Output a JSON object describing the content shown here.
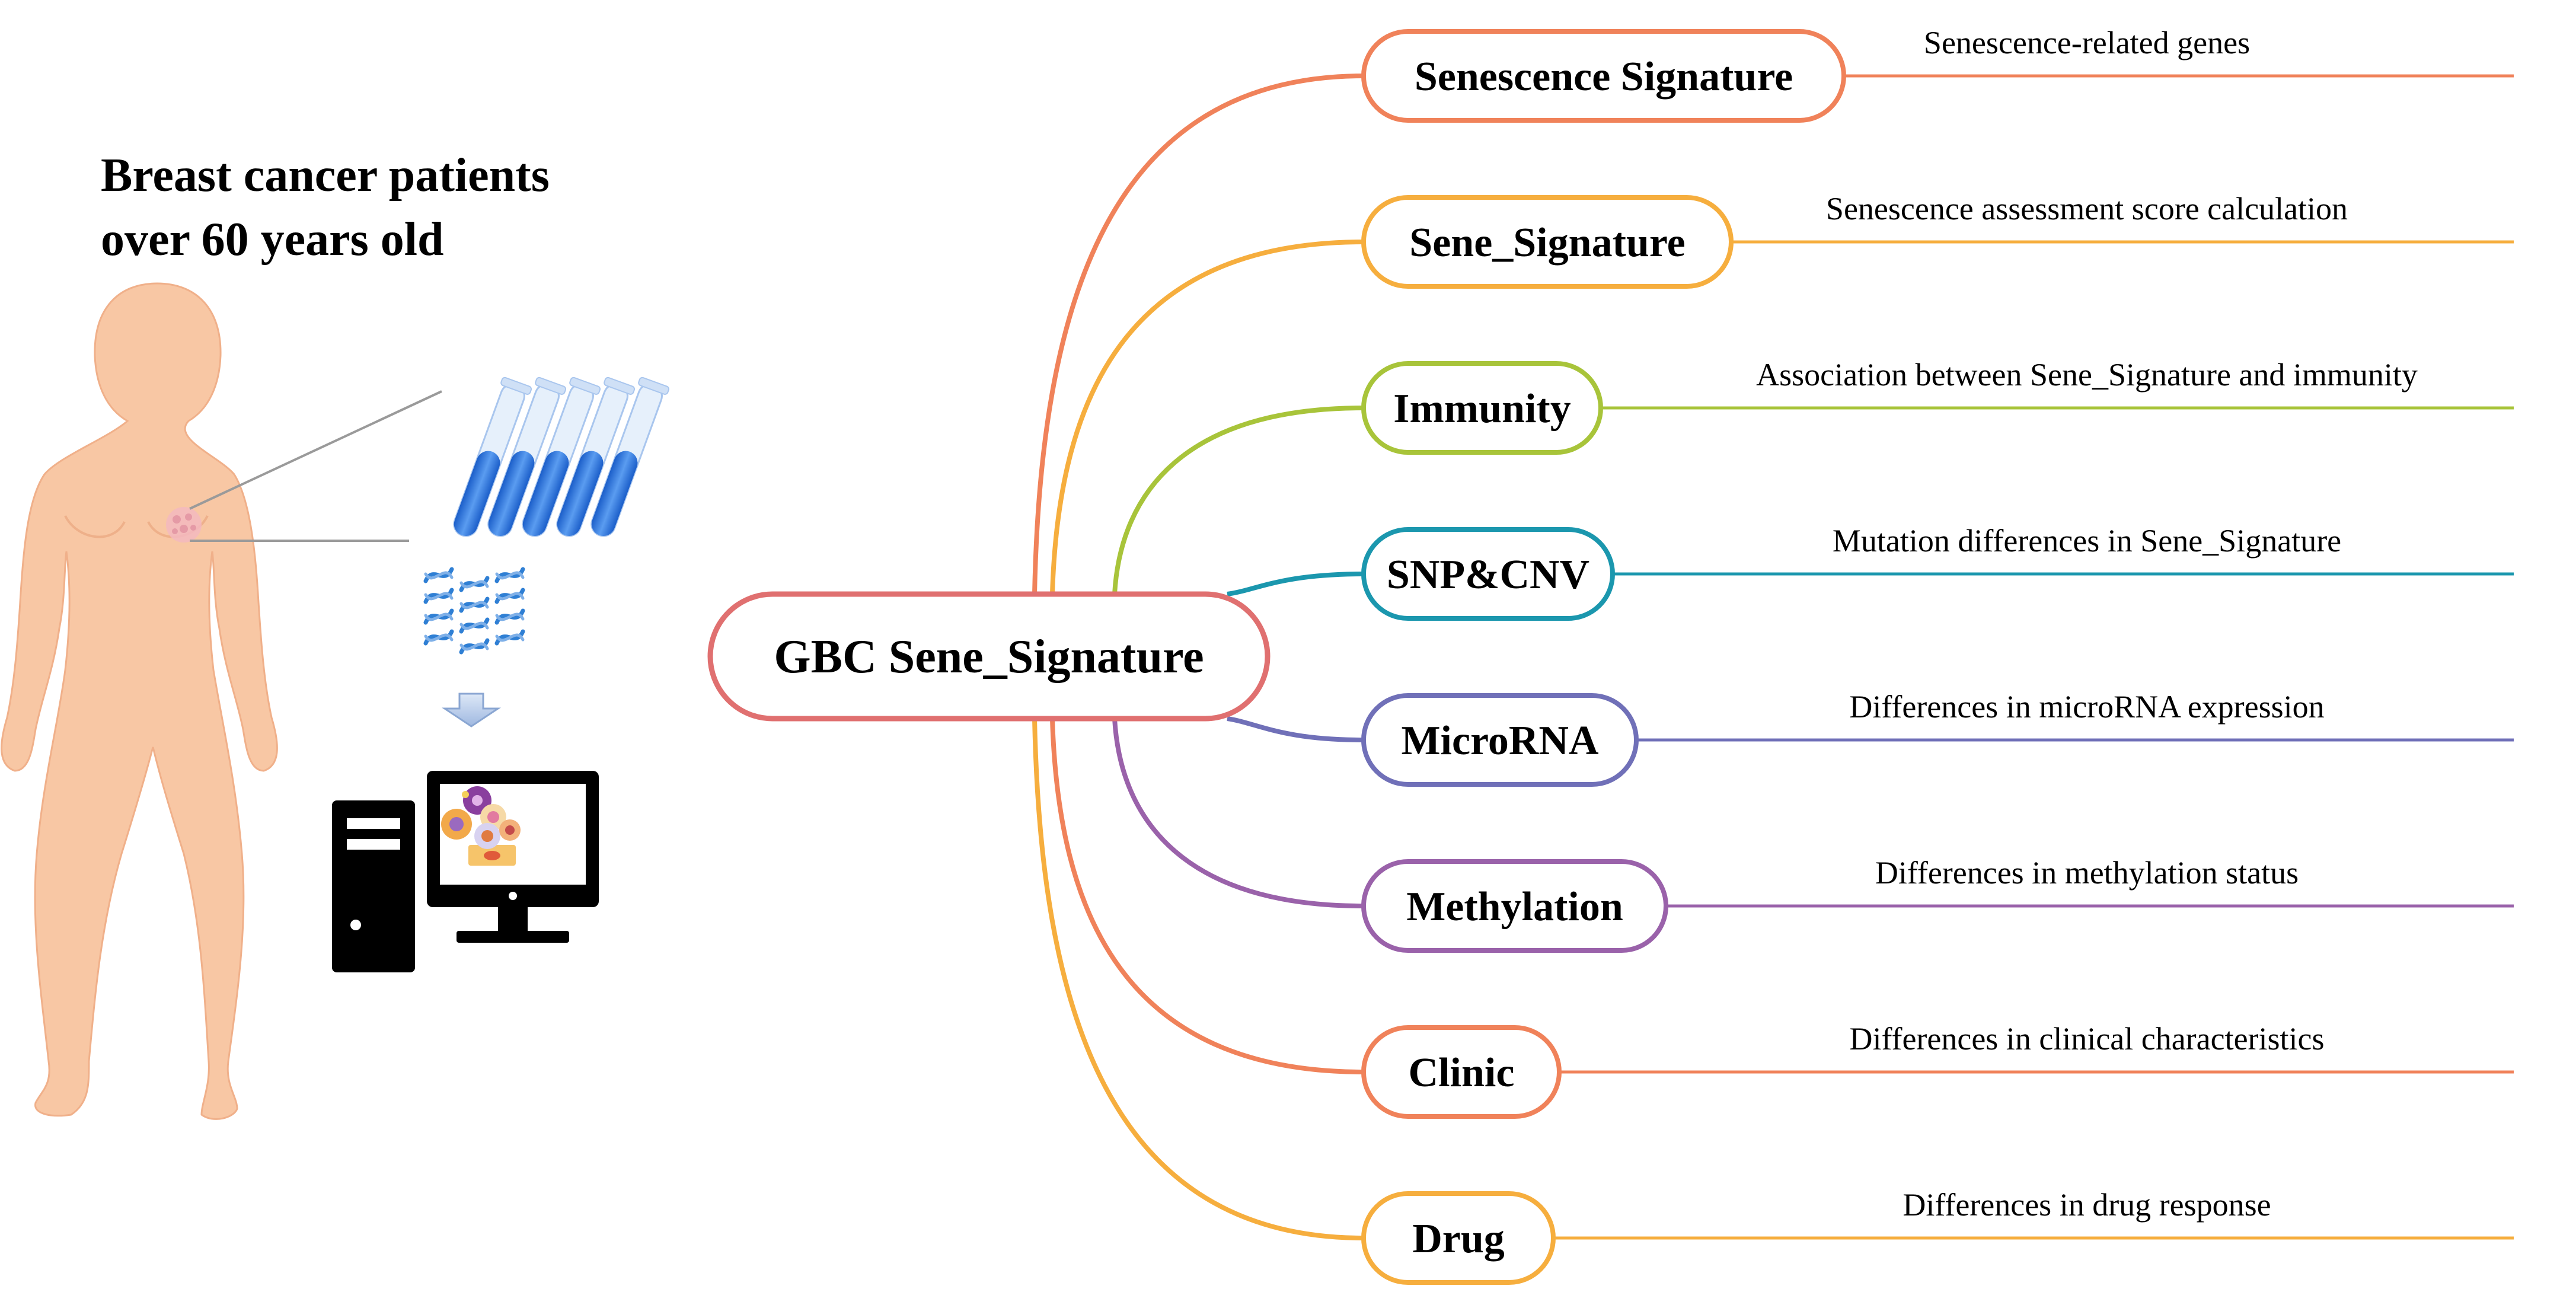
{
  "title": {
    "line1": "Breast cancer patients",
    "line2": "over 60 years old"
  },
  "center": {
    "label": "GBC Sene_Signature",
    "color": "#e07070"
  },
  "branches": [
    {
      "label": "Senescence Signature",
      "description": "Senescence-related genes",
      "color": "#f0825a"
    },
    {
      "label": "Sene_Signature",
      "description": "Senescence assessment score calculation",
      "color": "#f6ae3e"
    },
    {
      "label": "Immunity",
      "description": "Association between Sene_Signature and immunity",
      "color": "#a8c43a"
    },
    {
      "label": "SNP&CNV",
      "description": "Mutation differences in Sene_Signature",
      "color": "#1b97ae"
    },
    {
      "label": "MicroRNA",
      "description": "Differences in microRNA expression",
      "color": "#7070b8"
    },
    {
      "label": "Methylation",
      "description": "Differences in methylation status",
      "color": "#9a62aa"
    },
    {
      "label": "Clinic",
      "description": "Differences in clinical characteristics",
      "color": "#f0825a"
    },
    {
      "label": "Drug",
      "description": "Differences in drug response",
      "color": "#f6ae3e"
    }
  ],
  "icons": {
    "body": "human-body-icon",
    "tubes": "test-tubes-icon",
    "dna": "dna-strands-icon",
    "arrow": "down-arrow-icon",
    "computer": "computer-icon",
    "cells": "cells-icon"
  },
  "colors": {
    "skin": "#f8c7a4",
    "tube_fill": "#2a6fd6",
    "dna": "#2f7fd4",
    "computer": "#000000"
  }
}
